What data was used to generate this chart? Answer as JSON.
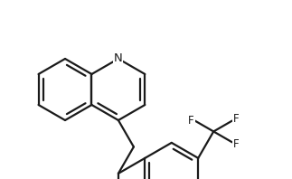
{
  "bg_color": "#ffffff",
  "line_color": "#1a1a1a",
  "line_width": 1.6,
  "font_size": 8.5,
  "figsize": [
    3.23,
    1.98
  ],
  "dpi": 100,
  "xlim": [
    0,
    323
  ],
  "ylim": [
    0,
    198
  ]
}
